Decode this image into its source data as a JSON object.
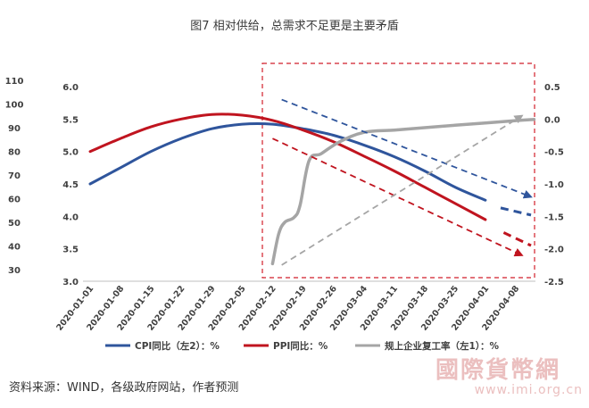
{
  "title": "图7 相对供给，总需求不足更是主要矛盾",
  "source": "资料来源：WIND，各级政府网站，作者预测",
  "watermark": {
    "brand": "國際貨幣網",
    "url": "www.imi.org.cn"
  },
  "colors": {
    "cpi": "#2f559c",
    "ppi": "#c0141f",
    "resume": "#a5a5a5",
    "box": "#d11f2a"
  },
  "chart_data": {
    "type": "line",
    "x": [
      "2020-01-01",
      "2020-01-08",
      "2020-01-15",
      "2020-01-22",
      "2020-01-29",
      "2020-02-05",
      "2020-02-12",
      "2020-02-19",
      "2020-02-26",
      "2020-03-04",
      "2020-03-11",
      "2020-03-18",
      "2020-03-25",
      "2020-04-01",
      "2020-04-08"
    ],
    "left_axis_1": {
      "ticks": [
        "110",
        "100",
        "90",
        "80",
        "70",
        "60",
        "50",
        "40",
        "30"
      ],
      "range": [
        30,
        110
      ]
    },
    "left_axis_2": {
      "ticks": [
        "6.0",
        "5.5",
        "5.0",
        "4.5",
        "4.0",
        "3.5",
        "3.0"
      ],
      "range": [
        3.0,
        6.0
      ]
    },
    "right_axis": {
      "ticks": [
        "0.5",
        "0.0",
        "-0.5",
        "-1.0",
        "-1.5",
        "-2.0",
        "-2.5"
      ],
      "range": [
        -2.5,
        0.5
      ]
    },
    "series": [
      {
        "name": "CPI同比（左2）：%",
        "axis": "left2",
        "points": [
          [
            0,
            4.5
          ],
          [
            1,
            4.75
          ],
          [
            2,
            5.0
          ],
          [
            3,
            5.2
          ],
          [
            4,
            5.35
          ],
          [
            5,
            5.42
          ],
          [
            6,
            5.42
          ],
          [
            7,
            5.35
          ],
          [
            8,
            5.25
          ],
          [
            9,
            5.1
          ],
          [
            10,
            4.92
          ],
          [
            11,
            4.7
          ],
          [
            12,
            4.45
          ],
          [
            13,
            4.25
          ]
        ],
        "forecast": [
          [
            13.5,
            4.13
          ],
          [
            14.5,
            4.02
          ]
        ]
      },
      {
        "name": "PPI同比：%",
        "axis": "left2",
        "points": [
          [
            0,
            5.0
          ],
          [
            1,
            5.2
          ],
          [
            2,
            5.38
          ],
          [
            3,
            5.5
          ],
          [
            4,
            5.57
          ],
          [
            5,
            5.56
          ],
          [
            6,
            5.48
          ],
          [
            7,
            5.33
          ],
          [
            8,
            5.15
          ],
          [
            9,
            4.93
          ],
          [
            10,
            4.7
          ],
          [
            11,
            4.45
          ],
          [
            12,
            4.2
          ],
          [
            13,
            3.95
          ]
        ],
        "forecast": [
          [
            13.6,
            3.75
          ],
          [
            14.5,
            3.55
          ]
        ]
      },
      {
        "name": "规上企业复工率（左1）：%",
        "axis": "left1",
        "points": [
          [
            6,
            32.5
          ],
          [
            6.2,
            45
          ],
          [
            6.4,
            50
          ],
          [
            6.7,
            52
          ],
          [
            6.9,
            57
          ],
          [
            7.2,
            76
          ],
          [
            7.6,
            79
          ],
          [
            8.2,
            84
          ],
          [
            9.0,
            88
          ],
          [
            10,
            89
          ],
          [
            11,
            90
          ],
          [
            12,
            91
          ],
          [
            13,
            92
          ],
          [
            14,
            93
          ],
          [
            14.6,
            93.5
          ]
        ]
      }
    ],
    "trend_arrows": [
      {
        "color": "blue",
        "from": [
          6.3,
          0.3
        ],
        "to": [
          14.5,
          -1.2
        ]
      },
      {
        "color": "red",
        "from": [
          6.0,
          -0.3
        ],
        "to": [
          14.2,
          -2.1
        ]
      },
      {
        "color": "gray",
        "from": [
          6.3,
          -2.25
        ],
        "to": [
          14.2,
          0.05
        ]
      }
    ],
    "legend": {
      "position": "bottom",
      "items": [
        "CPI同比（左2）：%",
        "PPI同比：%",
        "规上企业复工率（左1）：%"
      ]
    }
  }
}
